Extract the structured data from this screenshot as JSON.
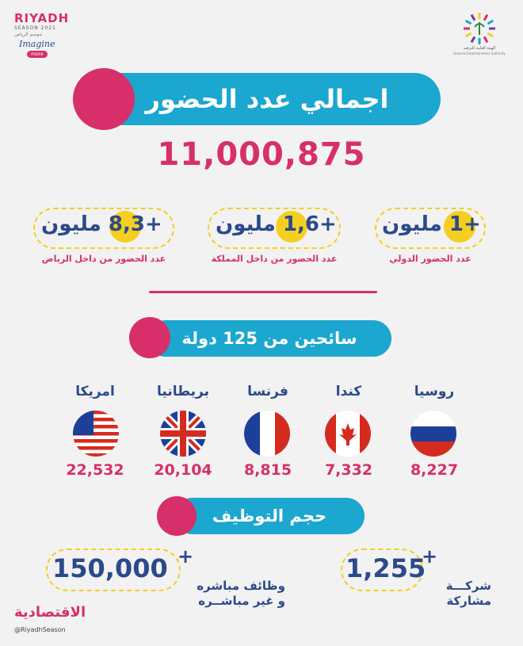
{
  "brand": {
    "riyadh": "RIYADH",
    "season": "SEASON 2021",
    "season_ar": "موسم الرياض",
    "imagine": "Imagine",
    "more": "more",
    "gea_ar": "الهيئة العامة للترفيه",
    "gea_en": "General Entertainment Authority"
  },
  "header": {
    "title": "اجمالي عدد الحضور",
    "total": "11,000,875"
  },
  "stats": [
    {
      "value": "1",
      "unit": "مليون",
      "plus": "+",
      "label": "عدد الحضور الدولي"
    },
    {
      "value": "1,6",
      "unit": "مليون",
      "plus": "+",
      "label": "عدد الحضور من داخل المملكة"
    },
    {
      "value": "8,3",
      "unit": "مليون",
      "plus": "+",
      "label": "عدد الحضور من داخل الرياض"
    }
  ],
  "tourists": {
    "title": "سائحين من 125 دولة"
  },
  "countries": [
    {
      "name": "روسيا",
      "count": "8,227",
      "flag": "russia-flag-icon"
    },
    {
      "name": "كندا",
      "count": "7,332",
      "flag": "canada-flag-icon"
    },
    {
      "name": "فرنسا",
      "count": "8,815",
      "flag": "france-flag-icon"
    },
    {
      "name": "بريطانيا",
      "count": "20,104",
      "flag": "uk-flag-icon"
    },
    {
      "name": "امريكا",
      "count": "22,532",
      "flag": "usa-flag-icon"
    }
  ],
  "employment": {
    "title": "حجم التوظيف",
    "companies_value": "1,255",
    "companies_plus": "+",
    "companies_line1": "شركـــة",
    "companies_line2": "مشاركة",
    "jobs_value": "150,000",
    "jobs_plus": "+",
    "jobs_line1": "وظائف مباشره",
    "jobs_line2": "و غير مباشــره"
  },
  "footer": {
    "source": "الاقتصادية",
    "handle": "@RiyadhSeason"
  },
  "colors": {
    "blue": "#1ba7cf",
    "pink": "#d62f6a",
    "navy": "#2b4a8a",
    "yellow": "#f4cf1f"
  }
}
